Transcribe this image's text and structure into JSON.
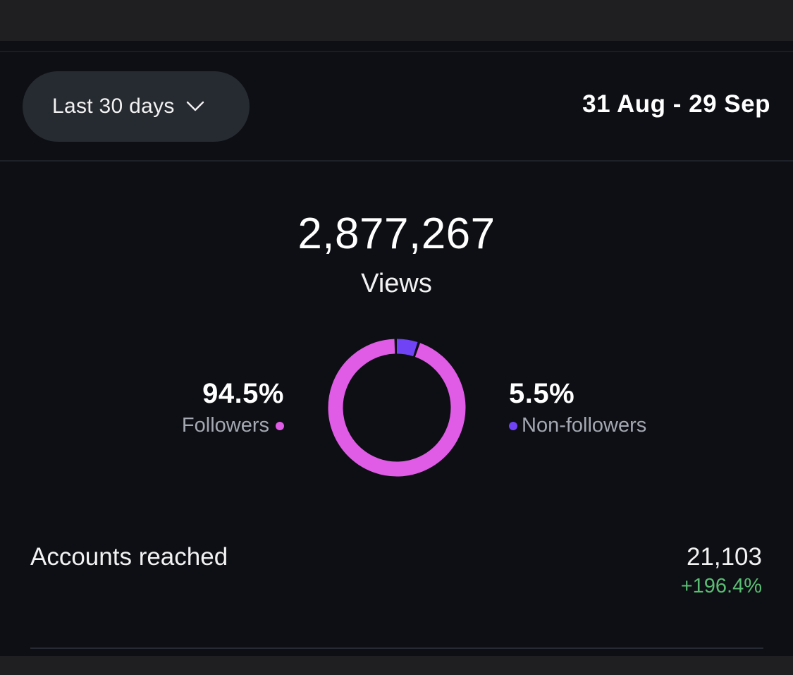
{
  "filter": {
    "range_label": "Last 30 days",
    "icon": "chevron-down-icon"
  },
  "date_range": "31 Aug - 29 Sep",
  "views": {
    "value": "2,877,267",
    "label": "Views"
  },
  "audience": {
    "followers": {
      "percent_label": "94.5%",
      "label": "Followers",
      "value": 94.5,
      "color": "#e05be6"
    },
    "non_followers": {
      "percent_label": "5.5%",
      "label": "Non-followers",
      "value": 5.5,
      "color": "#7043f5"
    }
  },
  "accounts_reached": {
    "label": "Accounts reached",
    "value": "21,103",
    "change": "+196.4%",
    "change_color": "#5bbd73"
  }
}
